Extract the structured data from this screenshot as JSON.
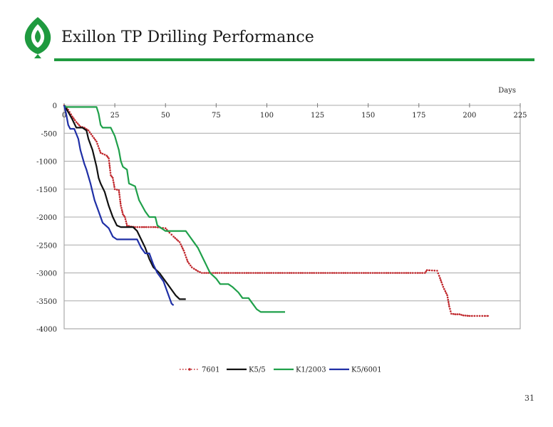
{
  "slide": {
    "title": "Exillon TP Drilling Performance",
    "page_number": "31",
    "brand_color": "#1f9a3f"
  },
  "chart_data": {
    "type": "line",
    "title": "",
    "xlabel": "Days",
    "ylabel": "",
    "xlim": [
      0,
      225
    ],
    "ylim": [
      -4000,
      0
    ],
    "x_ticks": [
      0,
      25,
      50,
      75,
      100,
      125,
      150,
      175,
      200,
      225
    ],
    "y_ticks": [
      0,
      -500,
      -1000,
      -1500,
      -2000,
      -2500,
      -3000,
      -3500,
      -4000
    ],
    "grid": "horizontal",
    "legend_position": "bottom",
    "series": [
      {
        "name": "7601",
        "color": "#c0282d",
        "style": "dotted-markers",
        "points": [
          [
            0,
            0
          ],
          [
            2,
            -80
          ],
          [
            4,
            -200
          ],
          [
            6,
            -300
          ],
          [
            8,
            -380
          ],
          [
            10,
            -400
          ],
          [
            12,
            -450
          ],
          [
            14,
            -550
          ],
          [
            16,
            -650
          ],
          [
            18,
            -850
          ],
          [
            21,
            -900
          ],
          [
            22,
            -950
          ],
          [
            23,
            -1250
          ],
          [
            24,
            -1300
          ],
          [
            25,
            -1500
          ],
          [
            27,
            -1520
          ],
          [
            28,
            -1800
          ],
          [
            29,
            -1950
          ],
          [
            30,
            -2000
          ],
          [
            31,
            -2150
          ],
          [
            33,
            -2170
          ],
          [
            35,
            -2180
          ],
          [
            45,
            -2180
          ],
          [
            50,
            -2200
          ],
          [
            52,
            -2280
          ],
          [
            54,
            -2350
          ],
          [
            57,
            -2450
          ],
          [
            59,
            -2600
          ],
          [
            61,
            -2800
          ],
          [
            63,
            -2900
          ],
          [
            66,
            -2970
          ],
          [
            68,
            -3000
          ],
          [
            80,
            -3000
          ],
          [
            120,
            -3000
          ],
          [
            160,
            -3000
          ],
          [
            172,
            -3000
          ],
          [
            178,
            -3000
          ],
          [
            179,
            -2950
          ],
          [
            184,
            -2960
          ],
          [
            185,
            -3050
          ],
          [
            187,
            -3250
          ],
          [
            189,
            -3400
          ],
          [
            190,
            -3600
          ],
          [
            191,
            -3730
          ],
          [
            193,
            -3740
          ],
          [
            195,
            -3740
          ],
          [
            197,
            -3760
          ],
          [
            200,
            -3770
          ],
          [
            205,
            -3770
          ],
          [
            210,
            -3770
          ]
        ]
      },
      {
        "name": "K5/5",
        "color": "#111111",
        "style": "solid",
        "points": [
          [
            0,
            0
          ],
          [
            2,
            -120
          ],
          [
            4,
            -250
          ],
          [
            6,
            -400
          ],
          [
            9,
            -400
          ],
          [
            11,
            -450
          ],
          [
            12,
            -600
          ],
          [
            14,
            -800
          ],
          [
            16,
            -1100
          ],
          [
            17,
            -1300
          ],
          [
            18,
            -1400
          ],
          [
            20,
            -1550
          ],
          [
            22,
            -1800
          ],
          [
            24,
            -2000
          ],
          [
            26,
            -2150
          ],
          [
            28,
            -2180
          ],
          [
            34,
            -2180
          ],
          [
            36,
            -2250
          ],
          [
            38,
            -2400
          ],
          [
            40,
            -2550
          ],
          [
            42,
            -2750
          ],
          [
            44,
            -2900
          ],
          [
            47,
            -3000
          ],
          [
            49,
            -3100
          ],
          [
            51,
            -3200
          ],
          [
            53,
            -3300
          ],
          [
            55,
            -3400
          ],
          [
            57,
            -3470
          ],
          [
            60,
            -3470
          ]
        ]
      },
      {
        "name": "K1/2003",
        "color": "#1fa04a",
        "style": "solid",
        "points": [
          [
            0,
            0
          ],
          [
            1,
            -30
          ],
          [
            6,
            -30
          ],
          [
            16,
            -30
          ],
          [
            17,
            -150
          ],
          [
            18,
            -350
          ],
          [
            19,
            -400
          ],
          [
            23,
            -400
          ],
          [
            25,
            -550
          ],
          [
            27,
            -800
          ],
          [
            28,
            -1000
          ],
          [
            29,
            -1100
          ],
          [
            31,
            -1150
          ],
          [
            32,
            -1400
          ],
          [
            35,
            -1450
          ],
          [
            37,
            -1700
          ],
          [
            40,
            -1900
          ],
          [
            42,
            -2000
          ],
          [
            45,
            -2000
          ],
          [
            46,
            -2150
          ],
          [
            48,
            -2200
          ],
          [
            50,
            -2250
          ],
          [
            60,
            -2250
          ],
          [
            62,
            -2350
          ],
          [
            64,
            -2450
          ],
          [
            66,
            -2550
          ],
          [
            68,
            -2700
          ],
          [
            70,
            -2850
          ],
          [
            72,
            -3000
          ],
          [
            75,
            -3100
          ],
          [
            77,
            -3200
          ],
          [
            81,
            -3200
          ],
          [
            83,
            -3250
          ],
          [
            86,
            -3350
          ],
          [
            88,
            -3450
          ],
          [
            91,
            -3450
          ],
          [
            93,
            -3550
          ],
          [
            95,
            -3650
          ],
          [
            97,
            -3700
          ],
          [
            101,
            -3700
          ],
          [
            109,
            -3700
          ]
        ]
      },
      {
        "name": "K5/6001",
        "color": "#1f2fa6",
        "style": "solid",
        "points": [
          [
            0,
            0
          ],
          [
            1,
            -150
          ],
          [
            2,
            -350
          ],
          [
            3,
            -420
          ],
          [
            5,
            -420
          ],
          [
            7,
            -600
          ],
          [
            8,
            -800
          ],
          [
            10,
            -1050
          ],
          [
            11,
            -1150
          ],
          [
            13,
            -1400
          ],
          [
            15,
            -1700
          ],
          [
            17,
            -1900
          ],
          [
            19,
            -2100
          ],
          [
            22,
            -2200
          ],
          [
            24,
            -2350
          ],
          [
            26,
            -2400
          ],
          [
            36,
            -2400
          ],
          [
            38,
            -2550
          ],
          [
            40,
            -2650
          ],
          [
            42,
            -2650
          ],
          [
            44,
            -2850
          ],
          [
            46,
            -3000
          ],
          [
            47,
            -3050
          ],
          [
            49,
            -3150
          ],
          [
            51,
            -3350
          ],
          [
            52,
            -3450
          ],
          [
            53,
            -3550
          ],
          [
            54,
            -3580
          ]
        ]
      }
    ]
  }
}
